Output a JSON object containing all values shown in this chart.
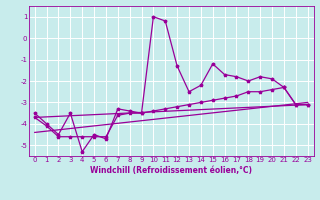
{
  "title": "",
  "xlabel": "Windchill (Refroidissement éolien,°C)",
  "ylabel": "",
  "bg_color": "#c8ecec",
  "line_color": "#990099",
  "grid_color": "#ffffff",
  "xlim": [
    -0.5,
    23.5
  ],
  "ylim": [
    -5.5,
    1.5
  ],
  "yticks": [
    1,
    0,
    -1,
    -2,
    -3,
    -4,
    -5
  ],
  "xticks": [
    0,
    1,
    2,
    3,
    4,
    5,
    6,
    7,
    8,
    9,
    10,
    11,
    12,
    13,
    14,
    15,
    16,
    17,
    18,
    19,
    20,
    21,
    22,
    23
  ],
  "series1_x": [
    0,
    1,
    2,
    3,
    4,
    5,
    6,
    7,
    8,
    9,
    10,
    11,
    12,
    13,
    14,
    15,
    16,
    17,
    18,
    19,
    20,
    21,
    22,
    23
  ],
  "series1_y": [
    -3.5,
    -4.0,
    -4.5,
    -3.5,
    -5.3,
    -4.5,
    -4.7,
    -3.3,
    -3.4,
    -3.5,
    1.0,
    0.8,
    -1.3,
    -2.5,
    -2.2,
    -1.2,
    -1.7,
    -1.8,
    -2.0,
    -1.8,
    -1.9,
    -2.3,
    -3.1,
    -3.1
  ],
  "series2_x": [
    0,
    1,
    2,
    3,
    4,
    5,
    6,
    7,
    8,
    9,
    10,
    11,
    12,
    13,
    14,
    15,
    16,
    17,
    18,
    19,
    20,
    21,
    22,
    23
  ],
  "series2_y": [
    -3.7,
    -4.1,
    -4.6,
    -4.6,
    -4.6,
    -4.6,
    -4.6,
    -3.6,
    -3.5,
    -3.5,
    -3.4,
    -3.3,
    -3.2,
    -3.1,
    -3.0,
    -2.9,
    -2.8,
    -2.7,
    -2.5,
    -2.5,
    -2.4,
    -2.3,
    -3.1,
    -3.1
  ],
  "series3_x": [
    0,
    23
  ],
  "series3_y": [
    -3.7,
    -3.1
  ],
  "series4_x": [
    0,
    23
  ],
  "series4_y": [
    -4.4,
    -3.0
  ],
  "tick_fontsize": 5.0,
  "xlabel_fontsize": 5.5
}
